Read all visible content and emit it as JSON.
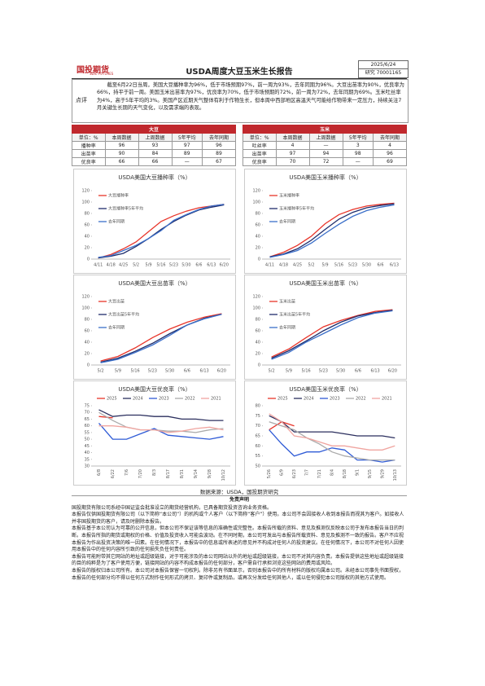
{
  "header": {
    "logo_cn": "国投期货",
    "logo_en": "SDIC FUTURES",
    "title": "USDA周度大豆玉米生长报告",
    "date": "2025/6/24",
    "code": "研究 70001165"
  },
  "summary": {
    "label": "点评",
    "text": "截至6月22日当周，美国大豆播种率为96%，低于市场预期97%，前一周为93%，去年同期为96%。大豆出苗率为90%，优良率为66%，持平于前一周。美国玉米出苗率为97%，优良率为70%，低于市场预期的72%，前一周为72%，去年同期为69%。玉米吐丝率为4%，高于5年平均的3%。美国产区近期天气整体有利于作物生长，但本周中西部地区高温天气可能给作物带来一定压力，持续关注7月关键生长期的天气变化，以及需求端的表现。"
  },
  "tables": [
    {
      "title": "大豆",
      "columns": [
        "单位：%",
        "本周数据",
        "上周数据",
        "5年平均",
        "去年同期"
      ],
      "rows": [
        [
          "播种率",
          96,
          93,
          97,
          96
        ],
        [
          "出苗率",
          90,
          84,
          89,
          89
        ],
        [
          "优良率",
          66,
          66,
          "—",
          67
        ]
      ]
    },
    {
      "title": "玉米",
      "columns": [
        "单位：%",
        "本周数据",
        "上周数据",
        "5年平均",
        "去年同期"
      ],
      "rows": [
        [
          "吐丝率",
          4,
          "—",
          3,
          4
        ],
        [
          "出苗率",
          97,
          94,
          98,
          96
        ],
        [
          "优良率",
          70,
          72,
          "—",
          69
        ]
      ]
    }
  ],
  "chart_data": [
    {
      "type": "line",
      "title": "USDA美国大豆播种率（%）",
      "legend": "top-left",
      "categories": [
        "4/11",
        "4/18",
        "4/25",
        "5/2",
        "5/9",
        "5/16",
        "5/23",
        "5/30",
        "6/6",
        "6/13",
        "6/20"
      ],
      "ylim": [
        0,
        120
      ],
      "yticks": [
        0,
        20,
        40,
        60,
        80,
        100,
        120
      ],
      "series": [
        {
          "name": "大豆播种率",
          "color": "#e8352a",
          "values": [
            2,
            8,
            18,
            30,
            48,
            66,
            76,
            84,
            90,
            93,
            96
          ]
        },
        {
          "name": "大豆播种率5年平均",
          "color": "#1f2d6b",
          "values": [
            2,
            5,
            10,
            22,
            36,
            52,
            66,
            77,
            86,
            91,
            95
          ]
        },
        {
          "name": "去年同期",
          "color": "#3b6fc9",
          "values": [
            3,
            6,
            15,
            24,
            36,
            50,
            68,
            78,
            87,
            93,
            96
          ]
        }
      ]
    },
    {
      "type": "line",
      "title": "USDA美国玉米播种率（%）",
      "legend": "top-left",
      "categories": [
        "4/11",
        "4/18",
        "4/25",
        "5/2",
        "5/9",
        "5/16",
        "5/23",
        "5/30",
        "6/6",
        "6/13"
      ],
      "ylim": [
        0,
        120
      ],
      "yticks": [
        0,
        20,
        40,
        60,
        80,
        100,
        120
      ],
      "series": [
        {
          "name": "玉米播种率",
          "color": "#e8352a",
          "values": [
            4,
            12,
            24,
            40,
            62,
            78,
            87,
            93,
            96,
            98
          ]
        },
        {
          "name": "玉米播种率5年平均",
          "color": "#1f2d6b",
          "values": [
            4,
            9,
            18,
            33,
            52,
            70,
            82,
            90,
            94,
            97
          ]
        },
        {
          "name": "去年同期",
          "color": "#3b6fc9",
          "values": [
            3,
            8,
            15,
            28,
            45,
            61,
            75,
            85,
            91,
            95
          ]
        }
      ]
    },
    {
      "type": "line",
      "title": "USDA美国大豆出苗率（%）",
      "legend": "top-left",
      "categories": [
        "5/2",
        "5/9",
        "5/16",
        "5/23",
        "5/30",
        "6/6",
        "6/13",
        "6/20"
      ],
      "ylim": [
        0,
        120
      ],
      "yticks": [
        0,
        20,
        40,
        60,
        80,
        100,
        120
      ],
      "series": [
        {
          "name": "大豆出苗",
          "color": "#e8352a",
          "values": [
            7,
            15,
            30,
            48,
            63,
            75,
            84,
            90
          ]
        },
        {
          "name": "大豆出苗5年平均",
          "color": "#1f2d6b",
          "values": [
            5,
            12,
            24,
            38,
            55,
            70,
            82,
            89
          ]
        },
        {
          "name": "去年同期",
          "color": "#3b6fc9",
          "values": [
            4,
            10,
            22,
            35,
            52,
            70,
            81,
            89
          ]
        }
      ]
    },
    {
      "type": "line",
      "title": "USDA美国玉米出苗率（%）",
      "legend": "top-left",
      "categories": [
        "5/2",
        "5/9",
        "5/16",
        "5/23",
        "5/30",
        "6/6",
        "6/13",
        "6/20"
      ],
      "ylim": [
        0,
        120
      ],
      "yticks": [
        0,
        20,
        40,
        60,
        80,
        100,
        120
      ],
      "series": [
        {
          "name": "玉米出苗",
          "color": "#e8352a",
          "values": [
            14,
            28,
            48,
            67,
            78,
            87,
            94,
            97
          ]
        },
        {
          "name": "玉米出苗5年平均",
          "color": "#1f2d6b",
          "values": [
            12,
            25,
            42,
            60,
            75,
            86,
            92,
            96
          ]
        },
        {
          "name": "去年同期",
          "color": "#3b6fc9",
          "values": [
            10,
            22,
            40,
            55,
            70,
            83,
            91,
            95
          ]
        }
      ]
    },
    {
      "type": "line",
      "title": "USDA美国大豆优良率（%）",
      "legend": "top",
      "categories": [
        "6/8",
        "6/22",
        "7/6",
        "7/20",
        "8/3",
        "8/17",
        "8/31",
        "9/14",
        "9/28",
        "10/12"
      ],
      "ylim": [
        30,
        75
      ],
      "yticks": [
        30,
        35,
        40,
        45,
        50,
        55,
        60,
        65,
        70,
        75
      ],
      "series": [
        {
          "name": "2025",
          "color": "#e8352a",
          "values": [
            67,
            66,
            null,
            null,
            null,
            null,
            null,
            null,
            null,
            null
          ]
        },
        {
          "name": "2024",
          "color": "#2b2f5e",
          "values": [
            72,
            67,
            68,
            68,
            67,
            67,
            65,
            65,
            64,
            64
          ]
        },
        {
          "name": "2023",
          "color": "#2f5bd6",
          "values": [
            62,
            50,
            50,
            54,
            58,
            53,
            52,
            51,
            50,
            52
          ]
        },
        {
          "name": "2022",
          "color": "#aaaaaa",
          "values": [
            70,
            64,
            59,
            57,
            57,
            56,
            56,
            55,
            57,
            58
          ]
        },
        {
          "name": "2021",
          "color": "#f0a5a0",
          "values": [
            60,
            60,
            59,
            57,
            57,
            55,
            56,
            58,
            59,
            57
          ]
        }
      ]
    },
    {
      "type": "line",
      "title": "USDA美国玉米优良率（%）",
      "legend": "top",
      "categories": [
        "5/26",
        "6/9",
        "6/23",
        "7/7",
        "7/21",
        "8/4",
        "8/18",
        "9/1",
        "9/15",
        "9/29",
        "10/13"
      ],
      "ylim": [
        50,
        80
      ],
      "yticks": [
        50,
        55,
        60,
        65,
        70,
        75,
        80
      ],
      "series": [
        {
          "name": "2025",
          "color": "#e8352a",
          "values": [
            68,
            72,
            70,
            null,
            null,
            null,
            null,
            null,
            null,
            null,
            null
          ]
        },
        {
          "name": "2024",
          "color": "#2b2f5e",
          "values": [
            75,
            72,
            67,
            67,
            67,
            67,
            66,
            65,
            65,
            65,
            64
          ]
        },
        {
          "name": "2023",
          "color": "#2f5bd6",
          "values": [
            68,
            61,
            55,
            57,
            57,
            59,
            58,
            53,
            53,
            52,
            53
          ]
        },
        {
          "name": "2022",
          "color": "#aaaaaa",
          "values": [
            72,
            70,
            68,
            64,
            61,
            57,
            55,
            54,
            53,
            53,
            53
          ]
        },
        {
          "name": "2021",
          "color": "#f0a5a0",
          "values": [
            76,
            72,
            65,
            64,
            62,
            60,
            60,
            59,
            58,
            58,
            60
          ]
        }
      ]
    }
  ],
  "source": "数据来源：USDA，国投期货研究",
  "disclaimer": {
    "title": "免责声明",
    "paragraphs": [
      "国投期货有限公司系经中国证监会批准设立的期货经营机构，已具备期货投资咨询业务资格。",
      "本报告仅供国投期货有限公司（以下简称“本公司”）的机构或个人客户（以下简称“客户”）使用。本公司不会因接收人收到本报告而视其为客户。如接收人并非国投期货的客户，请及时删除本报告。",
      "本报告基于本公司认为可靠的公开信息，但本公司不保证该等信息的准确性或完整性。本报告所载的资料、意见及推测仅反映本公司于发布本报告当日的判断。本报告所指的期货或期权的价格、价值及投资收入可能会波动。在不同时期，本公司可发出与本报告所载资料、意见及推测不一致的报告。客户不应视本报告为作出投资决策的唯一因素。在任何情况下，本报告中的信息或所表述的意见并不构成对任何人的投资建议。在任何情况下，本公司不对任何人因使用本报告中的任何内容所引致的任何损失负任何责任。",
      "本报告可能附带其它网站的地址或超级链接，对于可能涉及的本公司网站以外的地址或超级链接，本公司不对其内容负责。本报告提供这些地址或超级链接的目的纯粹是为了客户使用方便，链接网站的内容不构成本报告的任何部分，客户需自行承担浏览这些网站的费用或风险。",
      "本报告的版权归本公司所有。本公司对本报告保留一切权利。除非另有书面显示，否则本报告中的所有材料的版权均属本公司。未经本公司事先书面授权，本报告的任何部分均不得以任何方式制作任何形式的拷贝、复印件或复制品，或再次分发给任何其他人，或以任何侵犯本公司版权的其他方式使用。"
    ]
  }
}
